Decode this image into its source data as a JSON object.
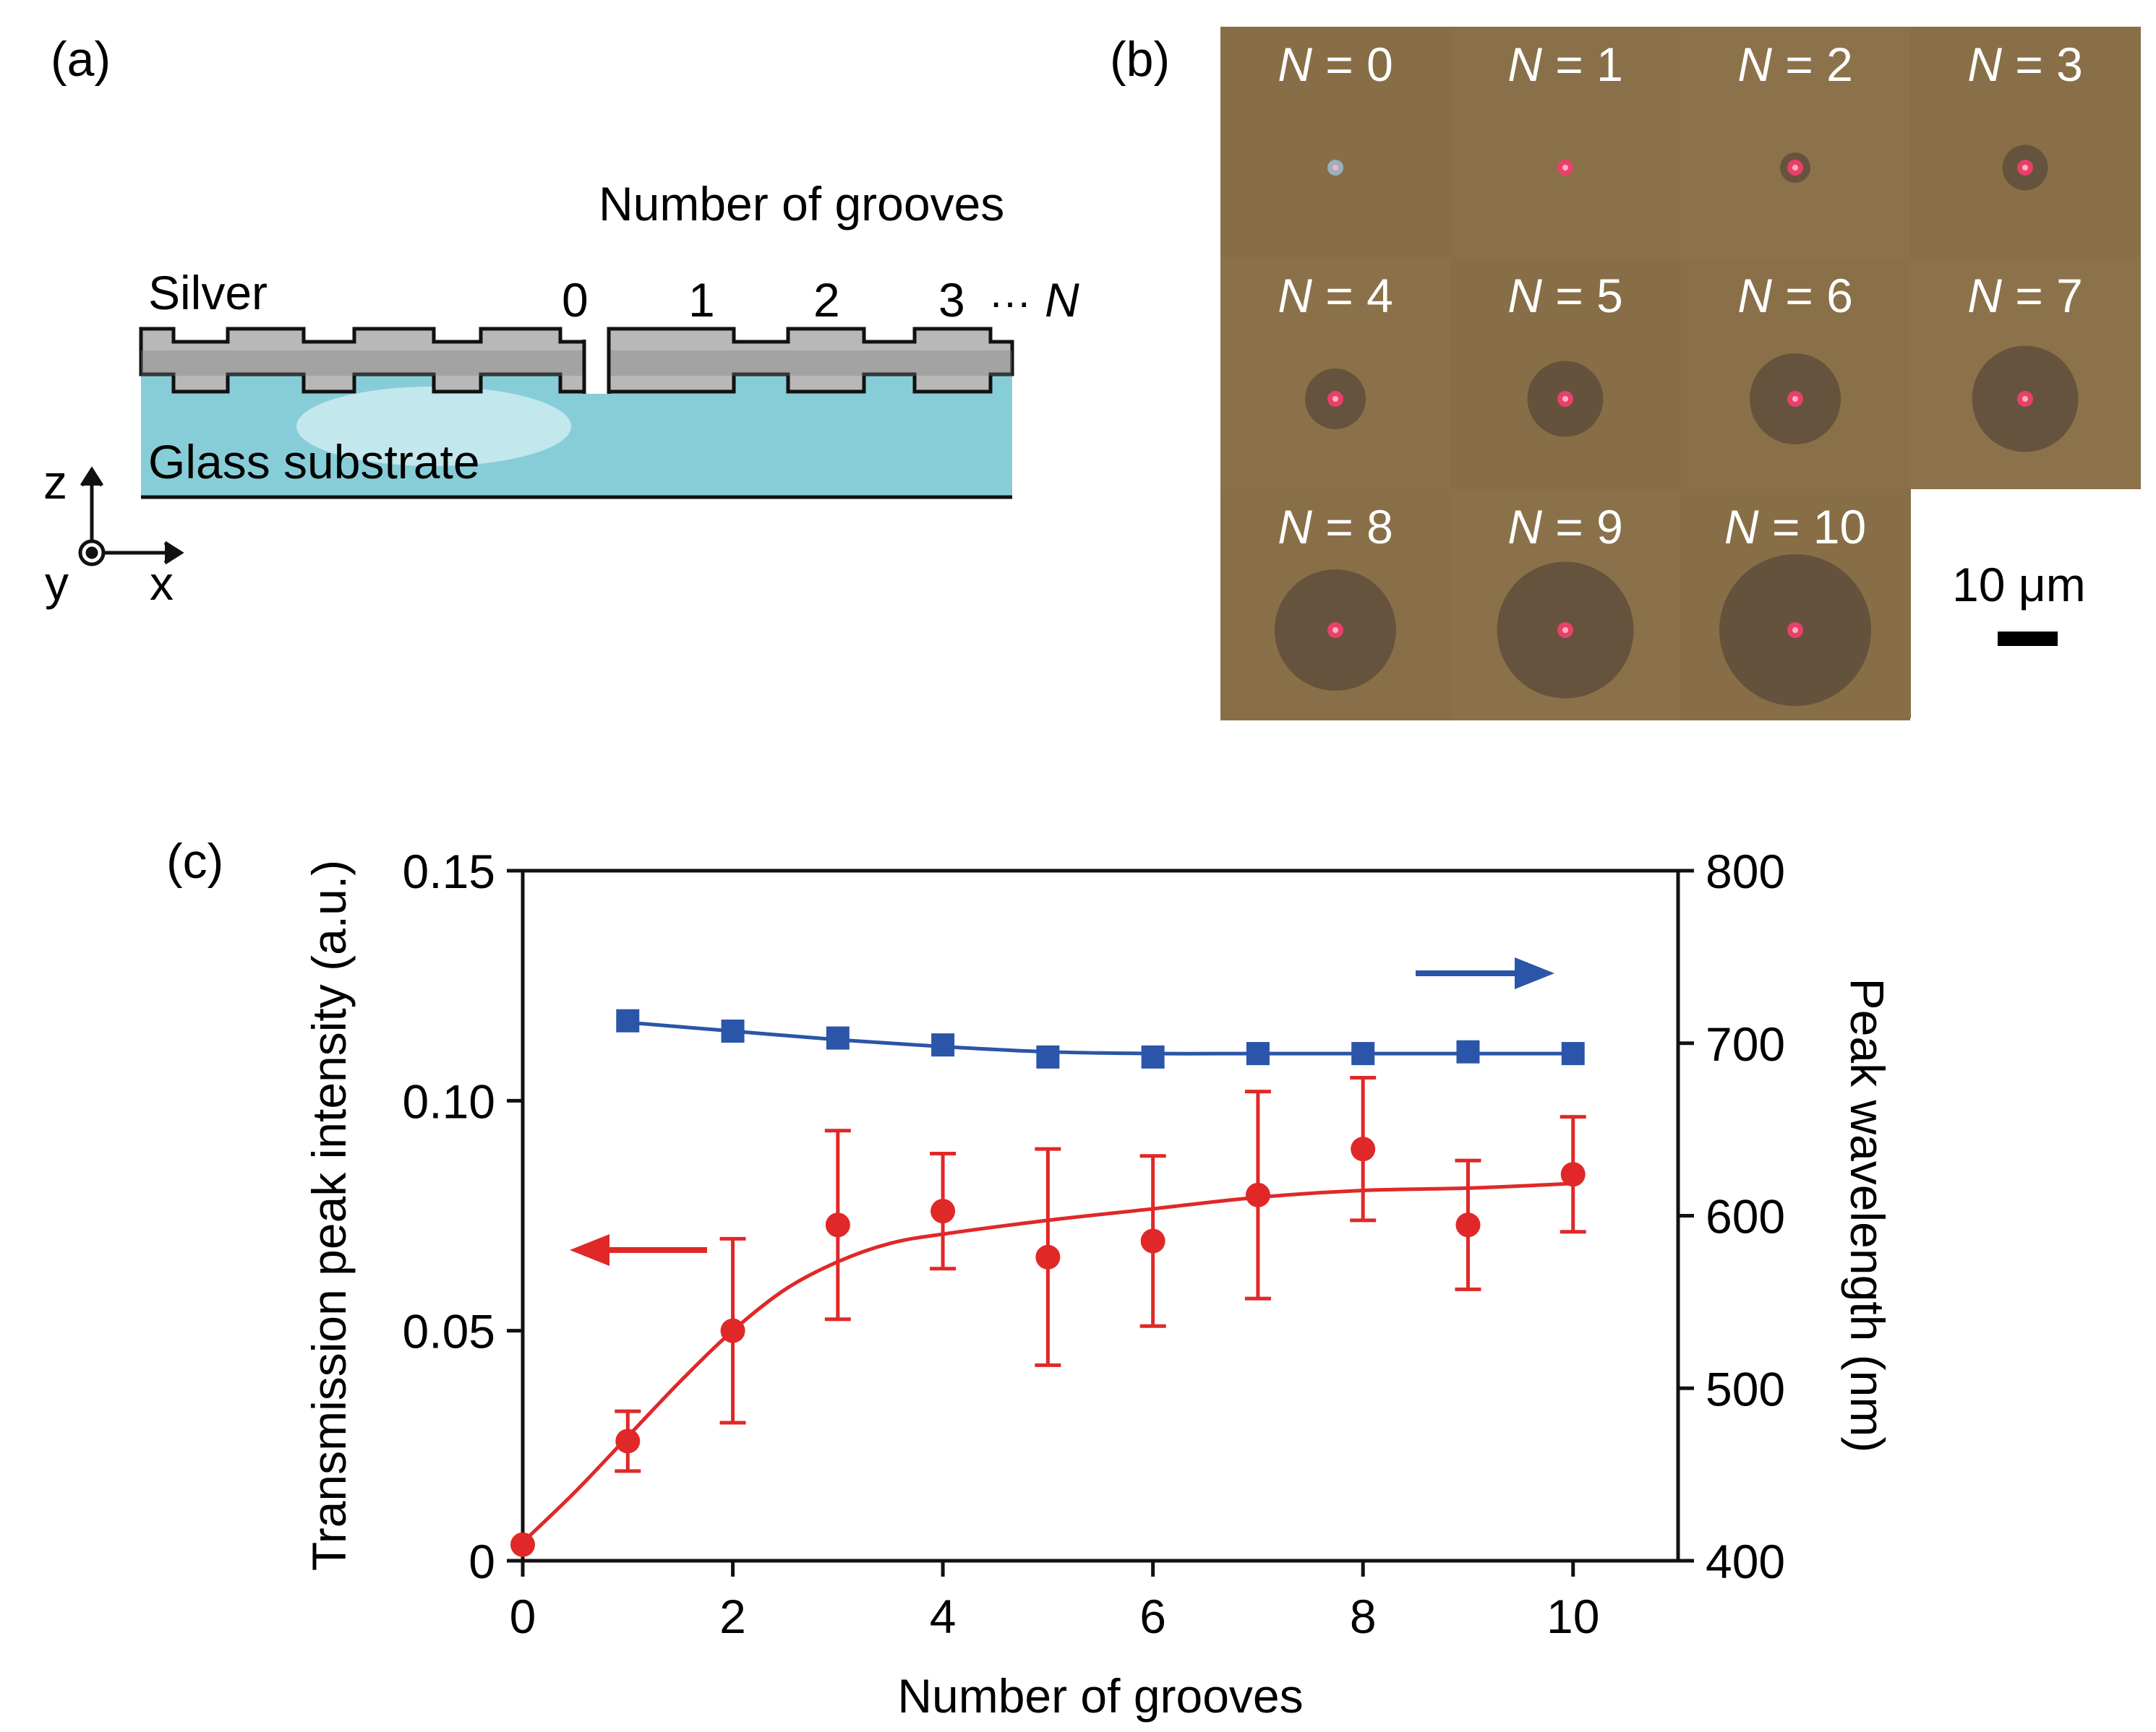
{
  "colors": {
    "glass": "#87cdd8",
    "silver_light": "#e4e4e4",
    "silver_dark": "#6a6a6a",
    "micrograph_bg": "#8a7048",
    "blue": "#2a55a8",
    "red": "#e02828"
  },
  "panel_a": {
    "label": "(a)",
    "title": "Number of grooves",
    "silver_label": "Silver",
    "glass_label": "Glass substrate",
    "groove_numbers": [
      "0",
      "1",
      "2",
      "3"
    ],
    "ellipsis": "···",
    "n_symbol": "N",
    "axes": {
      "z": "z",
      "y": "y",
      "x": "x"
    }
  },
  "panel_b": {
    "label": "(b)",
    "n_symbol": "N",
    "equals": " = ",
    "tiles": [
      {
        "n": "0",
        "halo_um": 0
      },
      {
        "n": "1",
        "halo_um": 0
      },
      {
        "n": "2",
        "halo_um": 3
      },
      {
        "n": "3",
        "halo_um": 4.5
      },
      {
        "n": "4",
        "halo_um": 6
      },
      {
        "n": "5",
        "halo_um": 7.5
      },
      {
        "n": "6",
        "halo_um": 9
      },
      {
        "n": "7",
        "halo_um": 10.5
      },
      {
        "n": "8",
        "halo_um": 12
      },
      {
        "n": "9",
        "halo_um": 13.5
      },
      {
        "n": "10",
        "halo_um": 15
      }
    ],
    "scale_bar_label": "10 μm"
  },
  "chart_data": {
    "label": "(c)",
    "type": "scatter",
    "xlabel": "Number of grooves",
    "ylabel_left": "Transmission peak intensity (a.u.)",
    "ylabel_right": "Peak wavelength (nm)",
    "xlim": [
      0,
      11
    ],
    "ylim_left": [
      0,
      0.15
    ],
    "ylim_right": [
      400,
      800
    ],
    "x_ticks": [
      "0",
      "2",
      "4",
      "6",
      "8",
      "10"
    ],
    "y_ticks_left": [
      "0",
      "0.05",
      "0.10",
      "0.15"
    ],
    "y_ticks_right": [
      "400",
      "500",
      "600",
      "700",
      "800"
    ],
    "series": [
      {
        "name": "Transmission peak intensity",
        "axis": "left",
        "color": "#e02828",
        "marker": "circle",
        "x": [
          0,
          1,
          2,
          3,
          4,
          5,
          6,
          7,
          8,
          9,
          10
        ],
        "y": [
          0.0035,
          0.026,
          0.05,
          0.073,
          0.076,
          0.066,
          0.0695,
          0.0795,
          0.0895,
          0.073,
          0.084
        ],
        "err": [
          0,
          0.0065,
          0.02,
          0.0205,
          0.0125,
          0.0235,
          0.0185,
          0.0225,
          0.0155,
          0.014,
          0.0125
        ],
        "fit_x": [
          0,
          0.5,
          1,
          1.5,
          2,
          2.5,
          3,
          3.5,
          4,
          5,
          6,
          7,
          8,
          9,
          10
        ],
        "fit_y": [
          0.004,
          0.015,
          0.027,
          0.039,
          0.05,
          0.059,
          0.065,
          0.069,
          0.071,
          0.074,
          0.0765,
          0.079,
          0.0805,
          0.081,
          0.082
        ]
      },
      {
        "name": "Peak wavelength",
        "axis": "right",
        "color": "#2a55a8",
        "marker": "square",
        "x": [
          1,
          2,
          3,
          4,
          5,
          6,
          7,
          8,
          9,
          10
        ],
        "y": [
          713,
          707,
          703,
          699,
          692,
          692,
          694,
          694,
          695,
          694
        ],
        "fit_x": [
          1,
          2,
          3,
          4,
          5,
          6,
          7,
          8,
          9,
          10
        ],
        "fit_y": [
          712,
          707,
          702,
          698,
          695,
          694,
          694,
          694,
          694,
          694
        ]
      }
    ]
  }
}
